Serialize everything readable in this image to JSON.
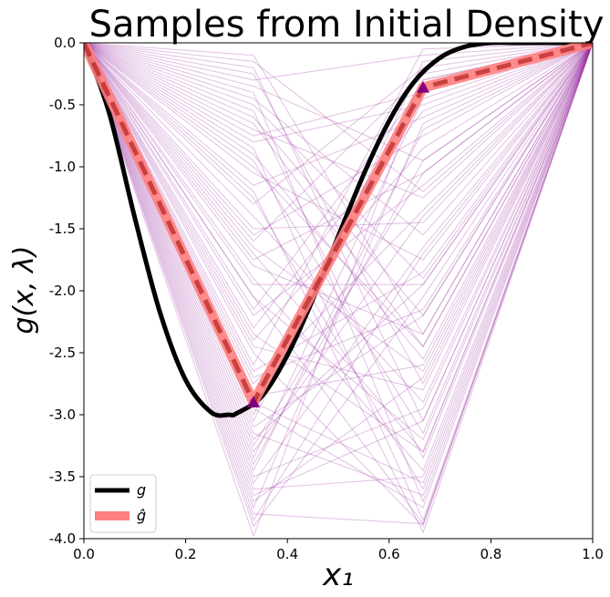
{
  "chart_data": {
    "type": "line",
    "title": "Samples from Initial Density",
    "xlabel": "x₁",
    "ylabel": "g(x, λ)",
    "xlim": [
      0.0,
      1.0
    ],
    "ylim": [
      -4.0,
      0.0
    ],
    "x_ticks": [
      "0.0",
      "0.2",
      "0.4",
      "0.6",
      "0.8",
      "1.0"
    ],
    "y_ticks": [
      "0.0",
      "-0.5",
      "-1.0",
      "-1.5",
      "-2.0",
      "-2.5",
      "-3.0",
      "-3.5",
      "-4.0"
    ],
    "grid": false,
    "legend_position": "lower-left",
    "legend": [
      {
        "label": "g",
        "color": "#000000"
      },
      {
        "label": "ĝ",
        "color": "#ff7f7f"
      }
    ],
    "g_curve": {
      "name": "g",
      "x": [
        0.0,
        0.05,
        0.1,
        0.15,
        0.2,
        0.25,
        0.2857,
        0.3,
        0.35,
        0.4,
        0.45,
        0.5,
        0.55,
        0.6,
        0.65,
        0.7,
        0.75,
        0.8,
        0.85,
        0.9,
        0.95,
        1.0
      ],
      "y": [
        0.0,
        -0.57,
        -1.41,
        -2.18,
        -2.72,
        -2.98,
        -3.0,
        -2.99,
        -2.85,
        -2.52,
        -2.07,
        -1.56,
        -1.06,
        -0.63,
        -0.31,
        -0.12,
        -0.03,
        -0.0,
        -0.0,
        -0.0,
        -0.0,
        0.0
      ]
    },
    "g_hat": {
      "name": "ĝ",
      "x": [
        0.0,
        0.3333,
        0.6667,
        1.0
      ],
      "y": [
        0.0,
        -2.9,
        -0.36,
        0.0
      ]
    },
    "nodes": [
      {
        "x": 0.3333,
        "y": -2.9
      },
      {
        "x": 0.6667,
        "y": -0.36
      }
    ],
    "samples_x": [
      0.0,
      0.3333,
      0.6667,
      1.0
    ],
    "samples": [
      [
        -0.65,
        -2.45
      ],
      [
        -3.98,
        -0.3
      ],
      [
        -3.8,
        -3.88
      ],
      [
        -0.15,
        -1.2
      ],
      [
        -2.6,
        -0.05
      ],
      [
        -1.25,
        -3.6
      ],
      [
        -3.1,
        -2.2
      ],
      [
        -0.9,
        -2.55
      ],
      [
        -3.45,
        -0.7
      ],
      [
        -2.05,
        -3.2
      ],
      [
        -0.35,
        -0.95
      ],
      [
        -3.55,
        -1.65
      ],
      [
        -1.6,
        -0.25
      ],
      [
        -2.95,
        -3.75
      ],
      [
        -0.55,
        -3.35
      ],
      [
        -3.25,
        -1.05
      ],
      [
        -1.95,
        -1.95
      ],
      [
        -0.75,
        -0.4
      ],
      [
        -3.7,
        -2.7
      ],
      [
        -2.3,
        -0.55
      ],
      [
        -1.4,
        -2.9
      ],
      [
        -3.05,
        -0.15
      ],
      [
        -0.2,
        -3.05
      ],
      [
        -2.75,
        -1.35
      ],
      [
        -1.05,
        -1.75
      ],
      [
        -3.6,
        -3.5
      ],
      [
        -1.8,
        -2.35
      ],
      [
        -0.45,
        -1.55
      ],
      [
        -2.5,
        -3.9
      ],
      [
        -3.35,
        -0.45
      ],
      [
        -1.15,
        -0.6
      ],
      [
        -0.85,
        -3.85
      ],
      [
        -2.2,
        -1.15
      ],
      [
        -3.9,
        -2.05
      ],
      [
        -1.7,
        -3.3
      ],
      [
        -0.3,
        -0.1
      ],
      [
        -2.85,
        -2.6
      ],
      [
        -1.5,
        -1.45
      ],
      [
        -3.15,
        -3.65
      ],
      [
        -0.6,
        -2.2
      ],
      [
        -2.4,
        -0.85
      ],
      [
        -3.5,
        -2.95
      ],
      [
        -1.3,
        -0.2
      ],
      [
        -0.95,
        -3.15
      ],
      [
        -2.65,
        -1.85
      ],
      [
        -3.75,
        -0.65
      ],
      [
        -1.9,
        -3.45
      ],
      [
        -0.25,
        -2.75
      ],
      [
        -2.15,
        -0.35
      ],
      [
        -3.3,
        -1.4
      ],
      [
        -1.0,
        -2.45
      ],
      [
        -2.9,
        -3.55
      ],
      [
        -0.7,
        -1.25
      ],
      [
        -3.65,
        -3.05
      ],
      [
        -1.55,
        -0.75
      ],
      [
        -2.45,
        -2.8
      ],
      [
        -0.4,
        -3.7
      ],
      [
        -3.2,
        -1.95
      ],
      [
        -1.75,
        -1.05
      ],
      [
        -2.05,
        -3.88
      ],
      [
        -3.85,
        -1.7
      ],
      [
        -0.8,
        -0.5
      ],
      [
        -2.7,
        -2.15
      ],
      [
        -1.2,
        -3.95
      ],
      [
        -3.4,
        -0.95
      ],
      [
        -0.5,
        -1.9
      ],
      [
        -2.35,
        -3.3
      ],
      [
        -1.65,
        -2.65
      ],
      [
        -3.0,
        -0.3
      ],
      [
        -0.1,
        -2.35
      ]
    ],
    "colors": {
      "g": "#000000",
      "g_hat": "#ff7f7f",
      "g_hat_dash": "#b22222",
      "samples": "#9b30a0",
      "nodes": "#800080"
    }
  }
}
